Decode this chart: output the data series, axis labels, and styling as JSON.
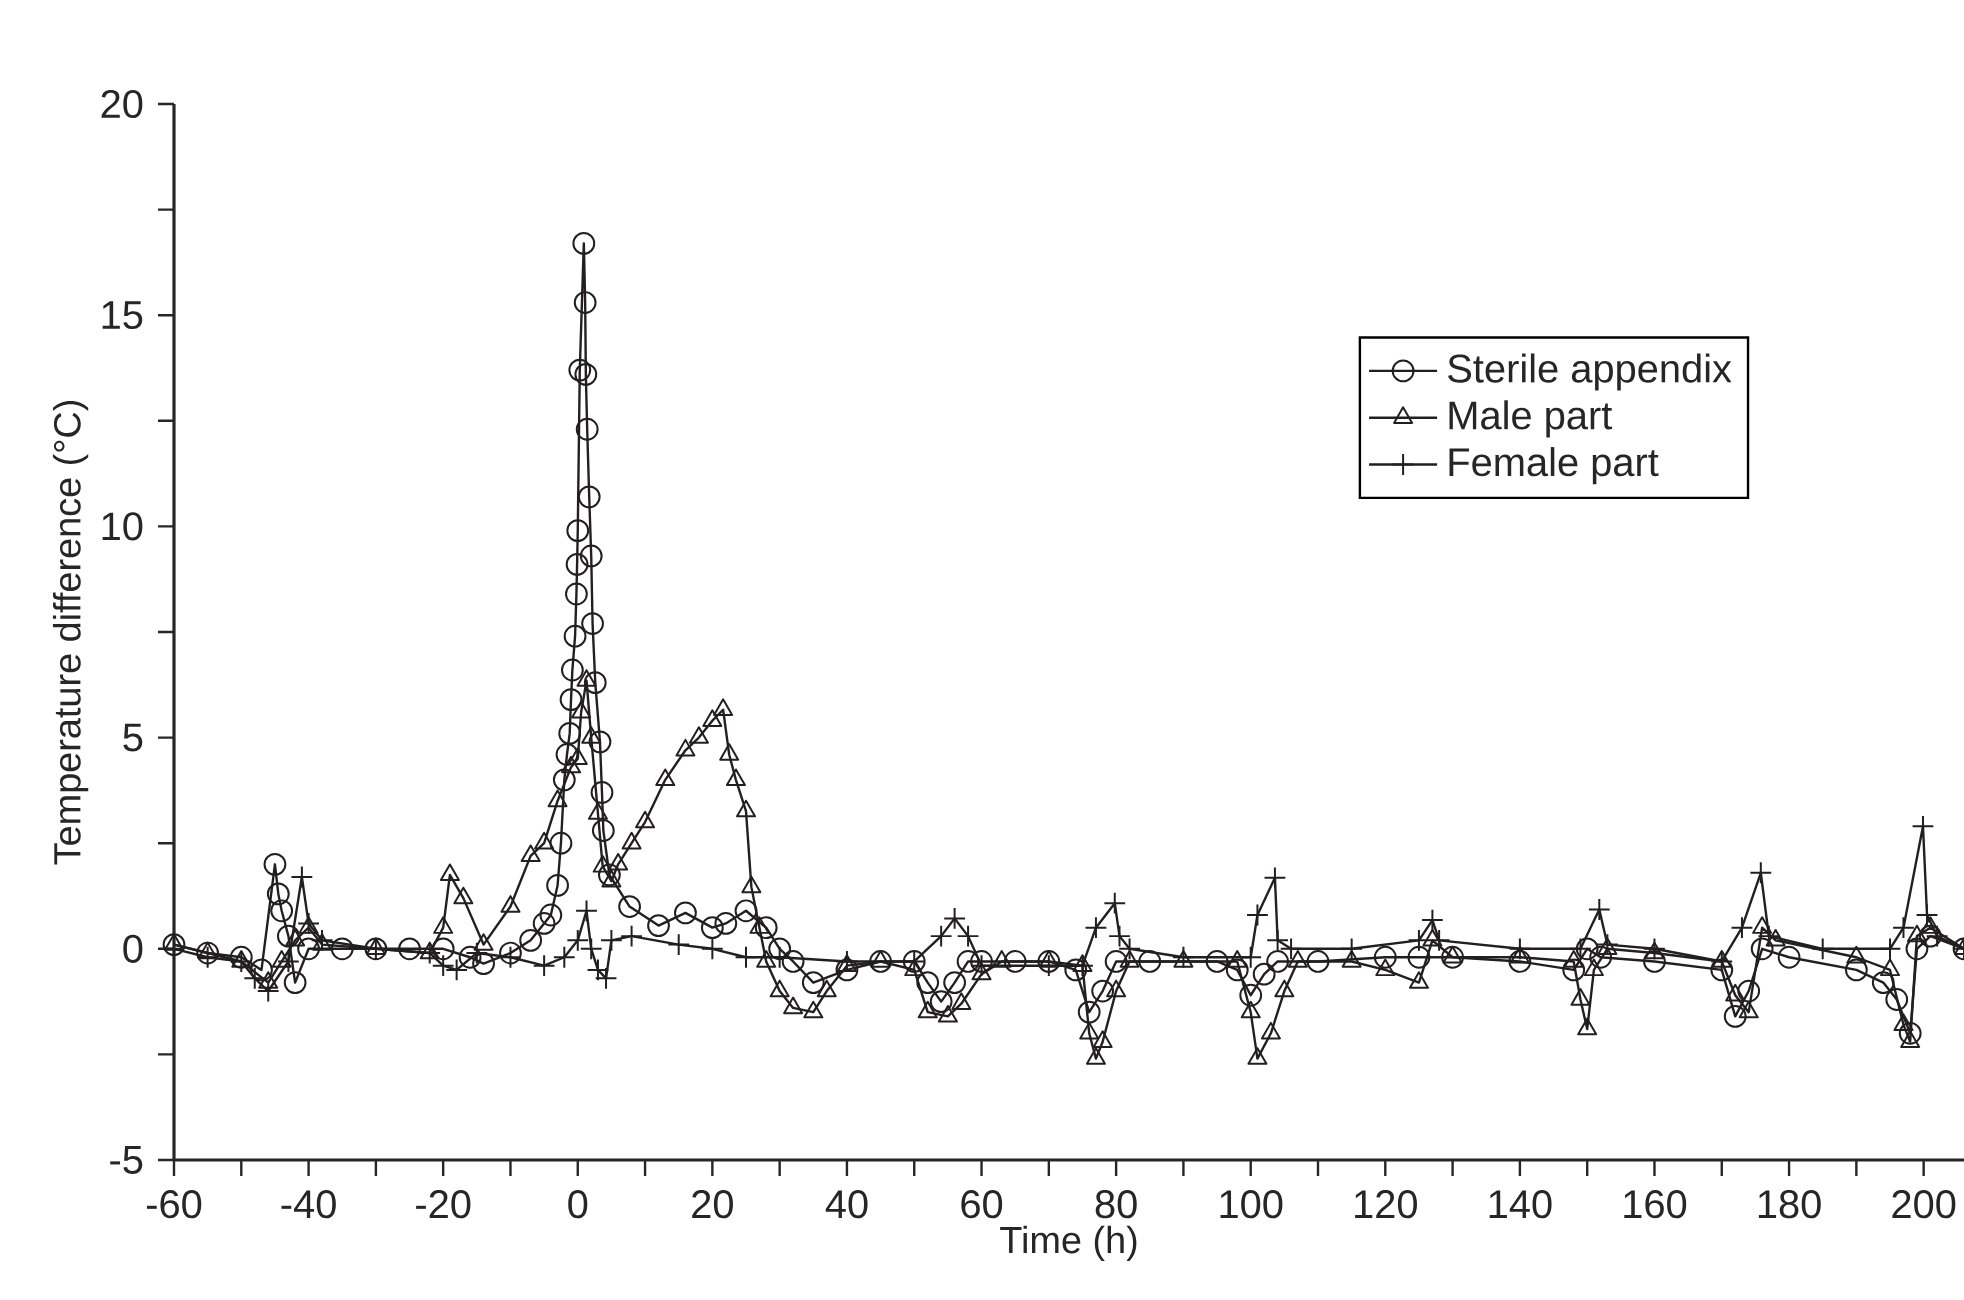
{
  "chart_data": {
    "type": "line",
    "xlabel": "Time (h)",
    "ylabel": "Temperature difference (°C)",
    "xlim": [
      -60,
      206
    ],
    "ylim": [
      -5,
      20
    ],
    "xticks": [
      -60,
      {
        "value": -50,
        "label": null
      },
      -40,
      {
        "value": -30,
        "label": null
      },
      -20,
      {
        "value": -10,
        "label": null
      },
      0,
      {
        "value": 10,
        "label": null
      },
      20,
      {
        "value": 30,
        "label": null
      },
      40,
      {
        "value": 50,
        "label": null
      },
      60,
      {
        "value": 70,
        "label": null
      },
      80,
      {
        "value": 90,
        "label": null
      },
      100,
      {
        "value": 110,
        "label": null
      },
      120,
      {
        "value": 130,
        "label": null
      },
      140,
      {
        "value": 150,
        "label": null
      },
      160,
      {
        "value": 170,
        "label": null
      },
      180,
      {
        "value": 190,
        "label": null
      },
      200
    ],
    "yticks": [
      -5,
      {
        "value": -2.5,
        "label": null
      },
      0,
      {
        "value": 2.5,
        "label": null
      },
      5,
      {
        "value": 7.5,
        "label": null
      },
      10,
      {
        "value": 12.5,
        "label": null
      },
      15,
      {
        "value": 17.5,
        "label": null
      },
      20
    ],
    "grid": false,
    "legend": "top right",
    "series": [
      {
        "name": "Sterile appendix",
        "color": "#231f20",
        "marker": "circle",
        "x": [
          -60,
          -55,
          -50,
          -47,
          -45,
          -44.5,
          -44,
          -43,
          -42,
          -40,
          -35,
          -30,
          -25,
          -20,
          -16,
          -14,
          -10,
          -7,
          -5,
          -4,
          -3,
          -2.5,
          -2,
          -1.6,
          -1.2,
          -1,
          -0.8,
          -0.4,
          -0.2,
          -0.1,
          0,
          0.3,
          0.9,
          1.1,
          1.2,
          1.4,
          1.7,
          2,
          2.2,
          2.6,
          3.3,
          3.6,
          3.8,
          4.7,
          7.7,
          12,
          16,
          20,
          22,
          25,
          28,
          30,
          32,
          35,
          40,
          45,
          50,
          52,
          54,
          56,
          58,
          60,
          65,
          70,
          74,
          76,
          78,
          80,
          85,
          95,
          98,
          100,
          102,
          104,
          110,
          120,
          125,
          130,
          140,
          148,
          150,
          152,
          160,
          170,
          172,
          174,
          176,
          180,
          190,
          194,
          196,
          198,
          199,
          201,
          206
        ],
        "values": [
          0.1,
          -0.1,
          -0.2,
          -0.5,
          2.0,
          1.3,
          0.9,
          0.3,
          -0.8,
          0.0,
          0.0,
          0.0,
          0.0,
          0.0,
          -0.2,
          -0.35,
          -0.1,
          0.2,
          0.6,
          0.8,
          1.5,
          2.5,
          4.0,
          4.6,
          5.1,
          5.9,
          6.6,
          7.4,
          8.4,
          9.1,
          9.9,
          13.7,
          16.7,
          15.3,
          13.6,
          12.3,
          10.7,
          9.3,
          7.7,
          6.3,
          4.9,
          3.7,
          2.8,
          1.75,
          1.0,
          0.55,
          0.85,
          0.5,
          0.6,
          0.9,
          0.5,
          0.0,
          -0.3,
          -0.8,
          -0.5,
          -0.3,
          -0.3,
          -0.8,
          -1.25,
          -0.8,
          -0.3,
          -0.3,
          -0.3,
          -0.3,
          -0.5,
          -1.5,
          -1.0,
          -0.3,
          -0.3,
          -0.3,
          -0.5,
          -1.1,
          -0.6,
          -0.3,
          -0.3,
          -0.2,
          -0.2,
          -0.2,
          -0.3,
          -0.5,
          0.0,
          -0.2,
          -0.3,
          -0.5,
          -1.6,
          -1.0,
          0.0,
          -0.2,
          -0.5,
          -0.8,
          -1.2,
          -2.0,
          0.0,
          0.3,
          0.0
        ]
      },
      {
        "name": "Male part",
        "color": "#231f20",
        "marker": "triangle",
        "x": [
          -60,
          -55,
          -50,
          -46,
          -44,
          -42,
          -40,
          -38,
          -30,
          -22,
          -20,
          -19,
          -17,
          -14,
          -10,
          -7,
          -5,
          -3,
          -1,
          0,
          0.5,
          1.3,
          2,
          3,
          3.7,
          5,
          6,
          8,
          10,
          13,
          16,
          18,
          20,
          21.6,
          22.5,
          23.5,
          25,
          25.8,
          27,
          28,
          30,
          32,
          35,
          37,
          40,
          45,
          50,
          52,
          55,
          57,
          60,
          63,
          70,
          75,
          76,
          77,
          78,
          80,
          82,
          90,
          98,
          100,
          101,
          103,
          105,
          107,
          115,
          120,
          125,
          127,
          130,
          140,
          148,
          149,
          150,
          151,
          153,
          160,
          170,
          172,
          174,
          176,
          178,
          190,
          195,
          197,
          198,
          199,
          201,
          206
        ],
        "values": [
          0.1,
          -0.1,
          -0.3,
          -0.8,
          -0.3,
          0.2,
          0.5,
          0.1,
          0.0,
          -0.1,
          0.5,
          1.75,
          1.2,
          0.1,
          1.0,
          2.2,
          2.5,
          3.5,
          4.3,
          4.5,
          5.6,
          6.35,
          5.0,
          3.2,
          1.95,
          1.6,
          2.0,
          2.5,
          3.0,
          4.0,
          4.7,
          5.0,
          5.4,
          5.66,
          4.6,
          4.0,
          3.26,
          1.46,
          0.5,
          -0.3,
          -1.0,
          -1.4,
          -1.5,
          -1.0,
          -0.4,
          -0.3,
          -0.5,
          -1.5,
          -1.6,
          -1.3,
          -0.6,
          -0.3,
          -0.3,
          -0.4,
          -2.0,
          -2.6,
          -2.2,
          -1.0,
          -0.3,
          -0.3,
          -0.3,
          -1.5,
          -2.6,
          -2.0,
          -1.0,
          -0.3,
          -0.3,
          -0.5,
          -0.8,
          0.2,
          -0.2,
          -0.2,
          -0.3,
          -1.2,
          -1.9,
          -0.5,
          0.0,
          -0.1,
          -0.3,
          -1.1,
          -1.5,
          0.5,
          0.2,
          -0.2,
          -0.5,
          -1.8,
          -2.2,
          0.3,
          0.5,
          0.0
        ]
      },
      {
        "name": "Female part",
        "color": "#231f20",
        "marker": "cross",
        "x": [
          -60,
          -55,
          -50,
          -48,
          -46,
          -43,
          -41,
          -40,
          -38,
          -30,
          -22,
          -20,
          -18,
          -15,
          -10,
          -5,
          -2,
          0,
          1.3,
          2,
          3,
          4.2,
          5,
          8,
          15,
          20,
          25,
          30,
          40,
          50,
          54,
          56,
          58,
          60,
          70,
          75,
          77,
          79.8,
          80.5,
          82,
          90,
          100,
          101,
          103.6,
          104,
          106,
          115,
          125,
          127,
          128,
          140,
          149,
          151.8,
          153,
          160,
          170,
          173,
          175.8,
          177,
          185,
          195,
          197,
          199.9,
          200.5,
          202,
          206
        ],
        "values": [
          0.0,
          -0.2,
          -0.3,
          -0.7,
          -1.0,
          -0.3,
          1.7,
          0.6,
          0.2,
          0.0,
          -0.1,
          -0.4,
          -0.5,
          -0.1,
          -0.2,
          -0.4,
          -0.2,
          0.2,
          0.9,
          0.0,
          -0.5,
          -0.7,
          0.2,
          0.3,
          0.1,
          0.0,
          -0.2,
          -0.2,
          -0.3,
          -0.3,
          0.3,
          0.72,
          0.3,
          -0.4,
          -0.4,
          -0.4,
          0.5,
          1.08,
          0.3,
          0.0,
          -0.2,
          -0.2,
          0.8,
          1.68,
          0.2,
          0.0,
          0.0,
          0.2,
          0.68,
          0.2,
          0.0,
          0.0,
          0.93,
          0.1,
          0.0,
          -0.3,
          0.5,
          1.8,
          0.3,
          0.0,
          0.0,
          0.5,
          2.9,
          0.8,
          0.3,
          0.0
        ]
      }
    ]
  }
}
